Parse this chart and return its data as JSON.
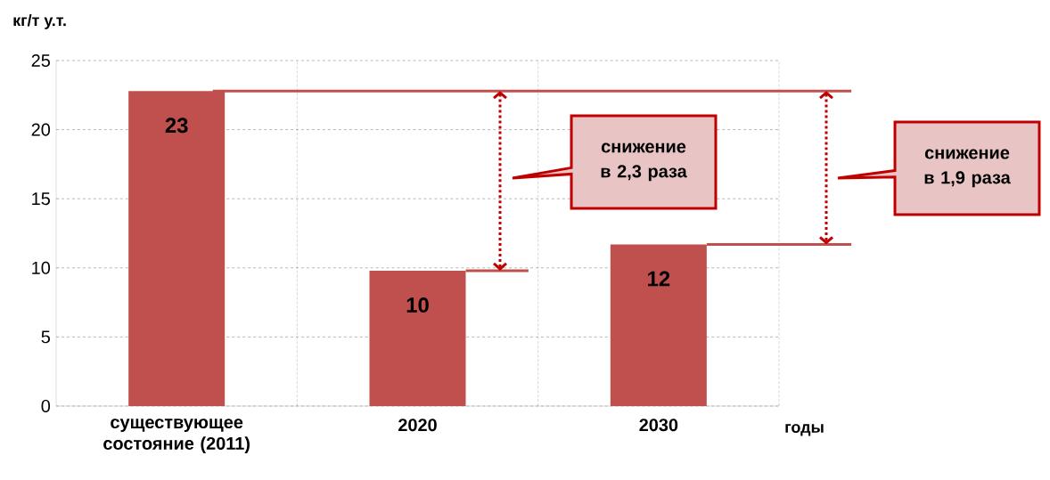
{
  "chart_data": {
    "type": "bar",
    "ylabel": "кг/т у.т.",
    "xlabel": "годы",
    "categories": [
      "существующее состояние (2011)",
      "2020",
      "2030"
    ],
    "values": [
      22.8,
      9.8,
      11.7
    ],
    "value_labels": [
      "23",
      "10",
      "12"
    ],
    "color": "#c0504d",
    "ylim": [
      0,
      25
    ],
    "yticks": [
      0,
      5,
      10,
      15,
      20,
      25
    ],
    "grid": true,
    "ref_lines": [
      {
        "axis": "y",
        "value": 22.8,
        "color": "#c0504d"
      },
      {
        "axis": "y",
        "value": 9.8,
        "color": "#c0504d"
      },
      {
        "axis": "y",
        "value": 11.7,
        "color": "#c0504d"
      }
    ],
    "annotations": [
      "снижение в 2,3 раза",
      "снижение в 1,9 раза"
    ]
  }
}
